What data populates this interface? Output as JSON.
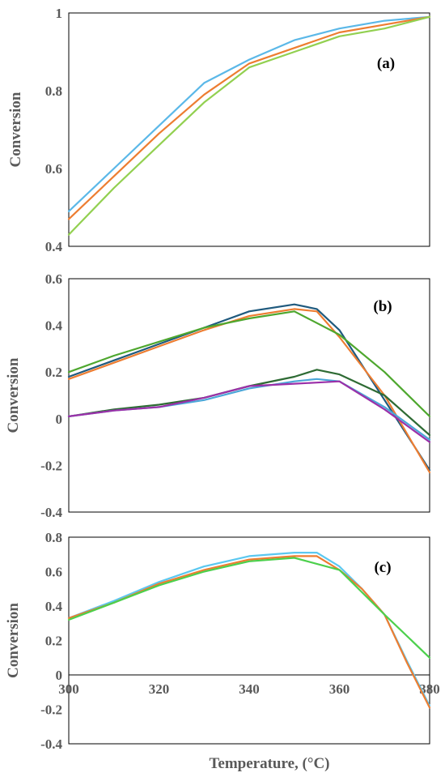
{
  "chart_data": [
    {
      "type": "line",
      "panel_label": "(a)",
      "ylabel": "Conversion",
      "xlabel": "",
      "xlim": [
        300,
        380
      ],
      "ylim": [
        0.4,
        1
      ],
      "yticks": [
        "0.4",
        "0.6",
        "0.8",
        "1"
      ],
      "yticks_values": [
        0.4,
        0.6,
        0.8,
        1
      ],
      "xticks": [],
      "zero_line": false,
      "series": [
        {
          "color": "#5BB8E8",
          "x": [
            300,
            310,
            320,
            330,
            340,
            350,
            360,
            370,
            380
          ],
          "y": [
            0.49,
            0.6,
            0.71,
            0.82,
            0.88,
            0.93,
            0.96,
            0.98,
            0.99
          ]
        },
        {
          "color": "#ED7D31",
          "x": [
            300,
            310,
            320,
            330,
            340,
            350,
            360,
            370,
            380
          ],
          "y": [
            0.47,
            0.58,
            0.69,
            0.79,
            0.87,
            0.91,
            0.95,
            0.97,
            0.99
          ]
        },
        {
          "color": "#92D050",
          "x": [
            300,
            310,
            320,
            330,
            340,
            350,
            360,
            370,
            380
          ],
          "y": [
            0.43,
            0.55,
            0.66,
            0.77,
            0.86,
            0.9,
            0.94,
            0.96,
            0.99
          ]
        }
      ]
    },
    {
      "type": "line",
      "panel_label": "(b)",
      "ylabel": "Conversion",
      "xlabel": "",
      "xlim": [
        300,
        380
      ],
      "ylim": [
        -0.4,
        0.6
      ],
      "yticks": [
        "-0.4",
        "-0.2",
        "0",
        "0.2",
        "0.4",
        "0.6"
      ],
      "yticks_values": [
        -0.4,
        -0.2,
        0,
        0.2,
        0.4,
        0.6
      ],
      "xticks": [],
      "zero_line": false,
      "series": [
        {
          "color": "#1F5A7E",
          "x": [
            300,
            310,
            320,
            330,
            340,
            350,
            355,
            360,
            370,
            380
          ],
          "y": [
            0.18,
            0.25,
            0.32,
            0.39,
            0.46,
            0.49,
            0.47,
            0.38,
            0.08,
            -0.22
          ]
        },
        {
          "color": "#ED7D31",
          "x": [
            300,
            310,
            320,
            330,
            340,
            350,
            355,
            360,
            370,
            380
          ],
          "y": [
            0.17,
            0.24,
            0.31,
            0.38,
            0.44,
            0.47,
            0.46,
            0.35,
            0.1,
            -0.23
          ]
        },
        {
          "color": "#4EA72E",
          "x": [
            300,
            310,
            320,
            330,
            340,
            350,
            360,
            370,
            380
          ],
          "y": [
            0.2,
            0.27,
            0.33,
            0.39,
            0.43,
            0.46,
            0.36,
            0.2,
            0.01
          ]
        },
        {
          "color": "#2E6B34",
          "x": [
            300,
            310,
            320,
            330,
            340,
            350,
            355,
            360,
            370,
            380
          ],
          "y": [
            0.01,
            0.04,
            0.06,
            0.09,
            0.14,
            0.18,
            0.21,
            0.19,
            0.1,
            -0.07
          ]
        },
        {
          "color": "#4BA6D8",
          "x": [
            300,
            310,
            320,
            330,
            340,
            350,
            355,
            360,
            370,
            380
          ],
          "y": [
            0.01,
            0.035,
            0.05,
            0.08,
            0.13,
            0.16,
            0.17,
            0.16,
            0.05,
            -0.09
          ]
        },
        {
          "color": "#9B30A8",
          "x": [
            300,
            310,
            320,
            330,
            340,
            350,
            355,
            360,
            370,
            380
          ],
          "y": [
            0.01,
            0.035,
            0.05,
            0.09,
            0.14,
            0.15,
            0.155,
            0.16,
            0.04,
            -0.1
          ]
        }
      ]
    },
    {
      "type": "line",
      "panel_label": "(c)",
      "ylabel": "Conversion",
      "xlabel": "Temperature, (°C)",
      "xlim": [
        300,
        380
      ],
      "ylim": [
        -0.4,
        0.8
      ],
      "yticks": [
        "-0.4",
        "-0.2",
        "0",
        "0.2",
        "0.4",
        "0.6",
        "0.8"
      ],
      "yticks_values": [
        -0.4,
        -0.2,
        0,
        0.2,
        0.4,
        0.6,
        0.8
      ],
      "xticks": [
        "300",
        "320",
        "340",
        "360",
        "380"
      ],
      "xticks_values": [
        300,
        320,
        340,
        360,
        380
      ],
      "zero_line": true,
      "series": [
        {
          "color": "#5BC8F0",
          "x": [
            300,
            310,
            320,
            330,
            340,
            350,
            355,
            360,
            365,
            370,
            375,
            380
          ],
          "y": [
            0.33,
            0.43,
            0.54,
            0.63,
            0.69,
            0.71,
            0.71,
            0.63,
            0.5,
            0.35,
            0.08,
            -0.18
          ]
        },
        {
          "color": "#ED7D31",
          "x": [
            300,
            310,
            320,
            330,
            340,
            350,
            355,
            360,
            365,
            370,
            375,
            380
          ],
          "y": [
            0.33,
            0.42,
            0.53,
            0.61,
            0.67,
            0.69,
            0.69,
            0.61,
            0.5,
            0.35,
            0.07,
            -0.19
          ]
        },
        {
          "color": "#4CD04C",
          "x": [
            300,
            310,
            320,
            330,
            340,
            350,
            360,
            370,
            380
          ],
          "y": [
            0.32,
            0.42,
            0.52,
            0.6,
            0.66,
            0.68,
            0.61,
            0.35,
            0.1
          ]
        }
      ]
    }
  ]
}
